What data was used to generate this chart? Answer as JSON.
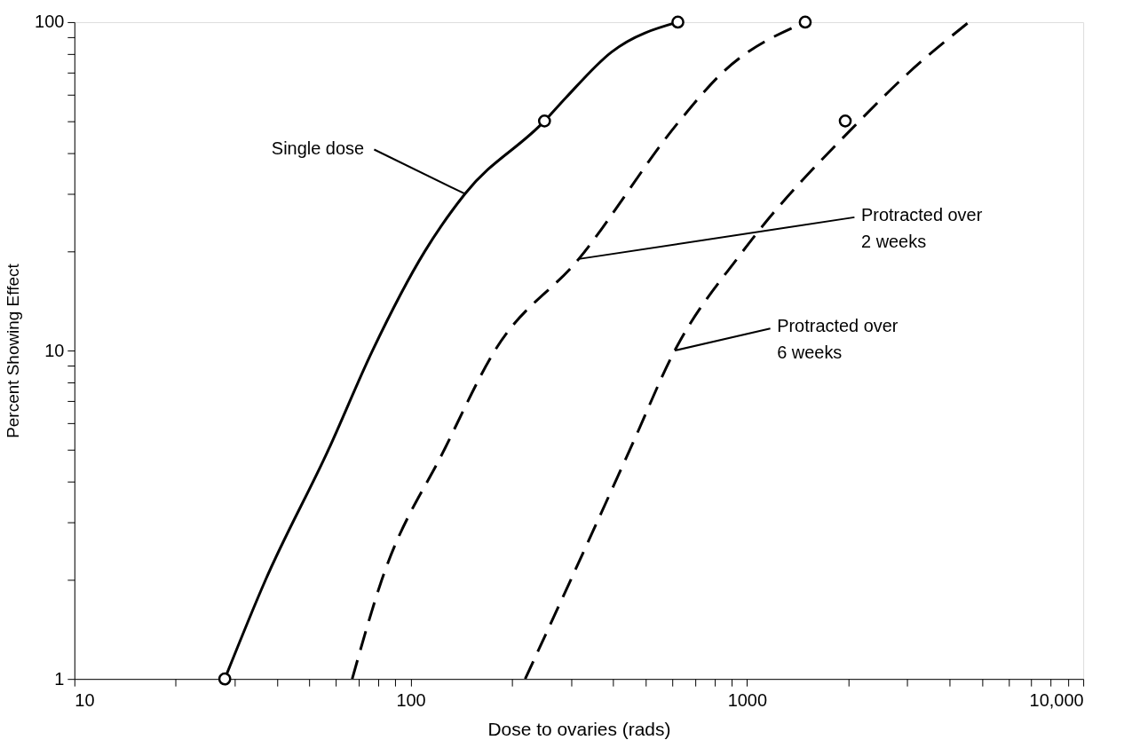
{
  "chart_data": {
    "type": "line",
    "xlabel": "Dose to ovaries (rads)",
    "ylabel": "Percent Showing Effect",
    "log": "xy",
    "grid": false,
    "xlim": [
      10,
      10000
    ],
    "ylim": [
      1,
      100
    ],
    "xticks": [
      10,
      {
        "value": 20,
        "label": null
      },
      {
        "value": 30,
        "label": null
      },
      {
        "value": 40,
        "label": null
      },
      {
        "value": 50,
        "label": null
      },
      {
        "value": 60,
        "label": null
      },
      {
        "value": 70,
        "label": null
      },
      {
        "value": 80,
        "label": null
      },
      {
        "value": 90,
        "label": null
      },
      100,
      {
        "value": 200,
        "label": null
      },
      {
        "value": 300,
        "label": null
      },
      {
        "value": 400,
        "label": null
      },
      {
        "value": 500,
        "label": null
      },
      {
        "value": 600,
        "label": null
      },
      {
        "value": 700,
        "label": null
      },
      {
        "value": 800,
        "label": null
      },
      {
        "value": 900,
        "label": null
      },
      1000,
      {
        "value": 2000,
        "label": null
      },
      {
        "value": 3000,
        "label": null
      },
      {
        "value": 4000,
        "label": null
      },
      {
        "value": 5000,
        "label": null
      },
      {
        "value": 6000,
        "label": null
      },
      {
        "value": 7000,
        "label": null
      },
      {
        "value": 8000,
        "label": null
      },
      {
        "value": 9000,
        "label": null
      },
      {
        "value": 10000,
        "label": "10,000"
      }
    ],
    "yticks": [
      1,
      {
        "value": 2,
        "label": null
      },
      {
        "value": 3,
        "label": null
      },
      {
        "value": 4,
        "label": null
      },
      {
        "value": 5,
        "label": null
      },
      {
        "value": 6,
        "label": null
      },
      {
        "value": 7,
        "label": null
      },
      {
        "value": 8,
        "label": null
      },
      {
        "value": 9,
        "label": null
      },
      10,
      {
        "value": 20,
        "label": null
      },
      {
        "value": 30,
        "label": null
      },
      {
        "value": 40,
        "label": null
      },
      {
        "value": 50,
        "label": null
      },
      {
        "value": 60,
        "label": null
      },
      {
        "value": 70,
        "label": null
      },
      {
        "value": 80,
        "label": null
      },
      {
        "value": 90,
        "label": null
      },
      100
    ],
    "series": [
      {
        "line_style": "solid",
        "color": "#000000",
        "x": [
          28,
          37,
          57,
          77,
          110,
          145,
          250,
          290,
          395,
          623
        ],
        "values": [
          1,
          2,
          5,
          10,
          20,
          30,
          50,
          59,
          81,
          100
        ]
      },
      {
        "line_style": "dashed",
        "color": "#000000",
        "x": [
          67,
          82,
          126,
          178,
          316,
          630,
          843,
          1490
        ],
        "values": [
          1,
          2,
          5,
          10,
          19,
          50,
          70,
          100
        ]
      },
      {
        "line_style": "dashed",
        "color": "#000000",
        "x": [
          219,
          299,
          449,
          610,
          970,
          2160,
          3020,
          4570
        ],
        "values": [
          1,
          2,
          5,
          10,
          20,
          50,
          70,
          100
        ]
      },
      {
        "type": "scatter",
        "marker": "circle",
        "color": "#000000",
        "x": [
          28,
          250,
          623,
          1490,
          1960
        ],
        "values": [
          1,
          50,
          100,
          100,
          50
        ]
      }
    ],
    "annotations": [
      {
        "text": "Single dose",
        "x": 145,
        "y": 30
      },
      {
        "text": "Protracted over\n2 weeks",
        "x": 316,
        "y": 19
      },
      {
        "text": "Protracted over\n6 weeks",
        "x": 610,
        "y": 10
      }
    ]
  }
}
